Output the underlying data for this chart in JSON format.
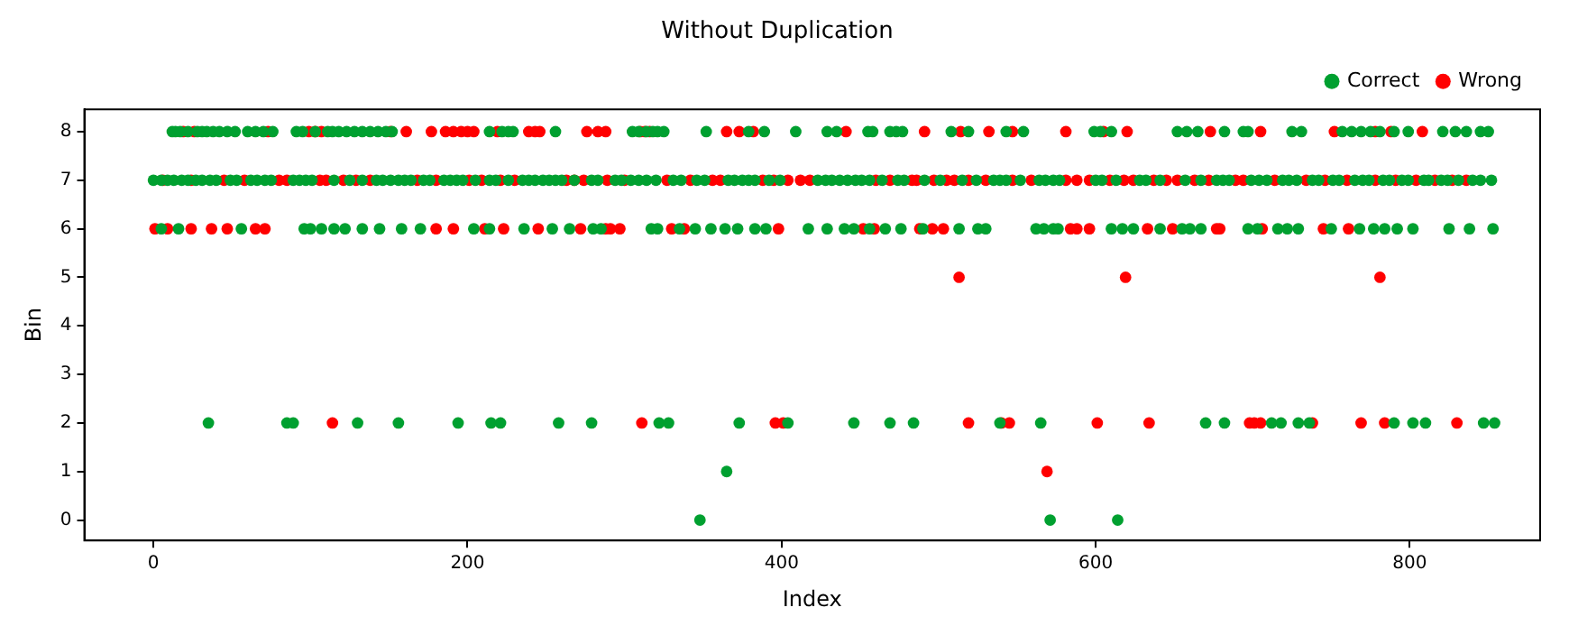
{
  "chart_data": {
    "type": "scatter",
    "title": "Without Duplication",
    "xlabel": "Index",
    "ylabel": "Bin",
    "xlim": [
      -44,
      883
    ],
    "ylim": [
      -0.42,
      8.46
    ],
    "xticks": [
      0,
      200,
      400,
      600,
      800
    ],
    "yticks": [
      0,
      1,
      2,
      3,
      4,
      5,
      6,
      7,
      8
    ],
    "grid": false,
    "legend": "top right",
    "marker": "circle",
    "series": [
      {
        "name": "Correct",
        "color": "#00a030",
        "x": [
          12,
          14,
          17,
          22,
          28,
          31,
          34,
          38,
          42,
          47,
          52,
          60,
          65,
          70,
          76,
          91,
          95,
          103,
          111,
          114,
          118,
          123,
          128,
          133,
          138,
          143,
          148,
          152,
          214,
          222,
          226,
          229,
          256,
          305,
          309,
          314,
          318,
          321,
          325,
          352,
          379,
          389,
          409,
          429,
          435,
          455,
          458,
          469,
          473,
          477,
          508,
          519,
          543,
          554,
          599,
          603,
          610,
          652,
          658,
          665,
          682,
          694,
          697,
          725,
          731,
          757,
          763,
          769,
          775,
          781,
          790,
          799,
          821,
          829,
          836,
          845,
          850,
          0,
          5,
          9,
          13,
          18,
          22,
          27,
          31,
          36,
          40,
          49,
          53,
          62,
          66,
          71,
          75,
          89,
          93,
          97,
          101,
          115,
          125,
          133,
          142,
          146,
          151,
          156,
          160,
          164,
          172,
          176,
          185,
          189,
          193,
          197,
          205,
          214,
          218,
          226,
          235,
          239,
          243,
          248,
          252,
          256,
          260,
          268,
          279,
          283,
          294,
          298,
          304,
          309,
          314,
          320,
          331,
          336,
          346,
          351,
          366,
          370,
          375,
          379,
          383,
          392,
          399,
          423,
          428,
          432,
          437,
          442,
          447,
          451,
          456,
          464,
          474,
          478,
          491,
          501,
          515,
          524,
          535,
          539,
          543,
          552,
          564,
          568,
          573,
          577,
          600,
          604,
          613,
          628,
          632,
          641,
          657,
          667,
          677,
          681,
          685,
          699,
          704,
          709,
          719,
          723,
          728,
          738,
          742,
          751,
          755,
          765,
          770,
          774,
          783,
          787,
          795,
          799,
          809,
          812,
          820,
          824,
          831,
          840,
          845,
          852,
          5,
          16,
          56,
          96,
          100,
          107,
          115,
          122,
          133,
          144,
          158,
          170,
          204,
          214,
          236,
          254,
          265,
          280,
          285,
          317,
          321,
          335,
          345,
          355,
          364,
          372,
          383,
          390,
          417,
          429,
          440,
          446,
          456,
          466,
          476,
          490,
          513,
          525,
          530,
          562,
          567,
          573,
          576,
          610,
          617,
          624,
          641,
          655,
          660,
          667,
          697,
          703,
          716,
          722,
          729,
          750,
          768,
          777,
          784,
          792,
          802,
          825,
          838,
          853,
          35,
          85,
          89,
          130,
          156,
          194,
          215,
          221,
          258,
          279,
          322,
          328,
          373,
          404,
          446,
          469,
          484,
          539,
          565,
          670,
          682,
          712,
          718,
          729,
          736,
          790,
          802,
          810,
          847,
          854,
          365,
          348,
          571,
          614
        ],
        "values": [
          8,
          8,
          8,
          8,
          8,
          8,
          8,
          8,
          8,
          8,
          8,
          8,
          8,
          8,
          8,
          8,
          8,
          8,
          8,
          8,
          8,
          8,
          8,
          8,
          8,
          8,
          8,
          8,
          8,
          8,
          8,
          8,
          8,
          8,
          8,
          8,
          8,
          8,
          8,
          8,
          8,
          8,
          8,
          8,
          8,
          8,
          8,
          8,
          8,
          8,
          8,
          8,
          8,
          8,
          8,
          8,
          8,
          8,
          8,
          8,
          8,
          8,
          8,
          8,
          8,
          8,
          8,
          8,
          8,
          8,
          8,
          8,
          8,
          8,
          8,
          8,
          8,
          7,
          7,
          7,
          7,
          7,
          7,
          7,
          7,
          7,
          7,
          7,
          7,
          7,
          7,
          7,
          7,
          7,
          7,
          7,
          7,
          7,
          7,
          7,
          7,
          7,
          7,
          7,
          7,
          7,
          7,
          7,
          7,
          7,
          7,
          7,
          7,
          7,
          7,
          7,
          7,
          7,
          7,
          7,
          7,
          7,
          7,
          7,
          7,
          7,
          7,
          7,
          7,
          7,
          7,
          7,
          7,
          7,
          7,
          7,
          7,
          7,
          7,
          7,
          7,
          7,
          7,
          7,
          7,
          7,
          7,
          7,
          7,
          7,
          7,
          7,
          7,
          7,
          7,
          7,
          7,
          7,
          7,
          7,
          7,
          7,
          7,
          7,
          7,
          7,
          7,
          7,
          7,
          7,
          7,
          7,
          7,
          7,
          7,
          7,
          7,
          7,
          7,
          7,
          7,
          7,
          7,
          7,
          7,
          7,
          7,
          7,
          7,
          7,
          7,
          7,
          7,
          7,
          7,
          7,
          7,
          7,
          7,
          7,
          7,
          7,
          6,
          6,
          6,
          6,
          6,
          6,
          6,
          6,
          6,
          6,
          6,
          6,
          6,
          6,
          6,
          6,
          6,
          6,
          6,
          6,
          6,
          6,
          6,
          6,
          6,
          6,
          6,
          6,
          6,
          6,
          6,
          6,
          6,
          6,
          6,
          6,
          6,
          6,
          6,
          6,
          6,
          6,
          6,
          6,
          6,
          6,
          6,
          6,
          6,
          6,
          6,
          6,
          6,
          6,
          6,
          6,
          6,
          6,
          6,
          6,
          6,
          6,
          6,
          6,
          2,
          2,
          2,
          2,
          2,
          2,
          2,
          2,
          2,
          2,
          2,
          2,
          2,
          2,
          2,
          2,
          2,
          2,
          2,
          2,
          2,
          2,
          2,
          2,
          2,
          2,
          2,
          2,
          2,
          2,
          1,
          0,
          0,
          0
        ]
      },
      {
        "name": "Wrong",
        "color": "#ff0000",
        "x": [
          19,
          26,
          73,
          99,
          103,
          107,
          151,
          161,
          177,
          186,
          191,
          196,
          200,
          204,
          219,
          239,
          243,
          246,
          276,
          283,
          288,
          310,
          313,
          316,
          365,
          373,
          382,
          441,
          491,
          514,
          532,
          547,
          581,
          605,
          620,
          673,
          705,
          752,
          778,
          788,
          808,
          6,
          24,
          45,
          58,
          80,
          85,
          106,
          110,
          121,
          129,
          138,
          168,
          180,
          201,
          209,
          221,
          230,
          263,
          268,
          274,
          289,
          300,
          327,
          342,
          356,
          361,
          388,
          395,
          404,
          412,
          418,
          460,
          469,
          483,
          486,
          497,
          505,
          510,
          519,
          530,
          547,
          559,
          581,
          588,
          596,
          609,
          618,
          624,
          637,
          645,
          652,
          663,
          672,
          689,
          694,
          714,
          734,
          746,
          760,
          778,
          791,
          804,
          816,
          827,
          836,
          1,
          9,
          24,
          37,
          47,
          65,
          71,
          180,
          191,
          211,
          223,
          245,
          272,
          288,
          291,
          297,
          330,
          338,
          398,
          452,
          459,
          488,
          496,
          503,
          584,
          588,
          596,
          633,
          649,
          677,
          679,
          706,
          745,
          761,
          513,
          619,
          781,
          114,
          311,
          396,
          401,
          519,
          540,
          545,
          601,
          634,
          698,
          701,
          705,
          738,
          769,
          784,
          830,
          569
        ],
        "values": [
          8,
          8,
          8,
          8,
          8,
          8,
          8,
          8,
          8,
          8,
          8,
          8,
          8,
          8,
          8,
          8,
          8,
          8,
          8,
          8,
          8,
          8,
          8,
          8,
          8,
          8,
          8,
          8,
          8,
          8,
          8,
          8,
          8,
          8,
          8,
          8,
          8,
          8,
          8,
          8,
          8,
          7,
          7,
          7,
          7,
          7,
          7,
          7,
          7,
          7,
          7,
          7,
          7,
          7,
          7,
          7,
          7,
          7,
          7,
          7,
          7,
          7,
          7,
          7,
          7,
          7,
          7,
          7,
          7,
          7,
          7,
          7,
          7,
          7,
          7,
          7,
          7,
          7,
          7,
          7,
          7,
          7,
          7,
          7,
          7,
          7,
          7,
          7,
          7,
          7,
          7,
          7,
          7,
          7,
          7,
          7,
          7,
          7,
          7,
          7,
          7,
          7,
          7,
          7,
          7,
          7,
          6,
          6,
          6,
          6,
          6,
          6,
          6,
          6,
          6,
          6,
          6,
          6,
          6,
          6,
          6,
          6,
          6,
          6,
          6,
          6,
          6,
          6,
          6,
          6,
          6,
          6,
          6,
          6,
          6,
          6,
          6,
          6,
          6,
          6,
          5,
          5,
          5,
          2,
          2,
          2,
          2,
          2,
          2,
          2,
          2,
          2,
          2,
          2,
          2,
          2,
          2,
          2,
          2,
          1
        ]
      }
    ]
  }
}
